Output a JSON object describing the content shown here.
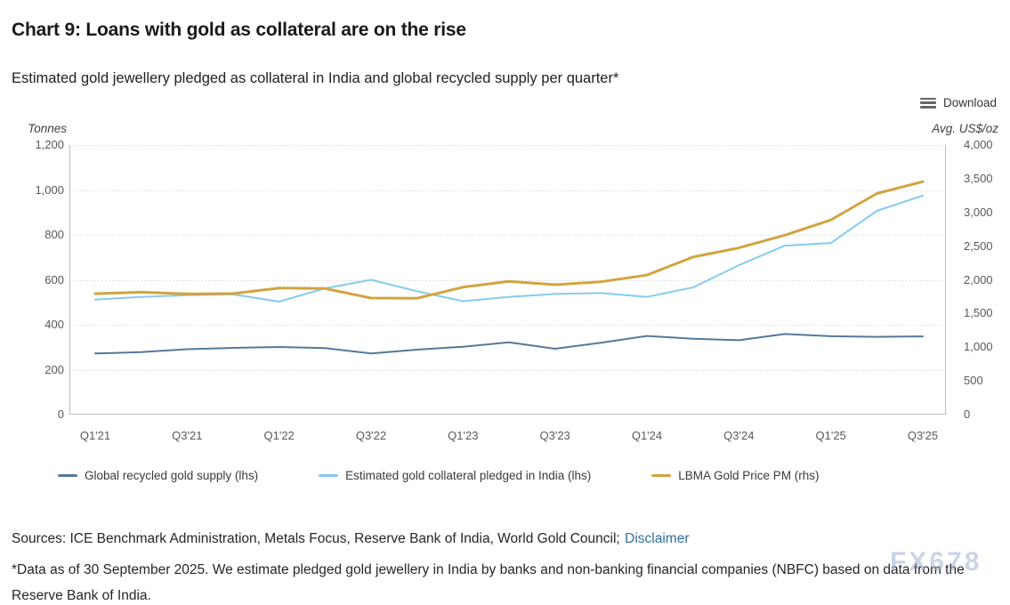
{
  "header": {
    "title": "Chart 9: Loans with gold as collateral are on the rise",
    "subtitle": "Estimated gold jewellery pledged as collateral in India and global recycled supply per quarter*",
    "download_label": "Download"
  },
  "chart_data": {
    "type": "line",
    "categories": [
      "Q1'21",
      "Q2'21",
      "Q3'21",
      "Q4'21",
      "Q1'22",
      "Q2'22",
      "Q3'22",
      "Q4'22",
      "Q1'23",
      "Q2'23",
      "Q3'23",
      "Q4'23",
      "Q1'24",
      "Q2'24",
      "Q3'24",
      "Q4'24",
      "Q1'25",
      "Q2'25",
      "Q3'25"
    ],
    "x_tick_labels": [
      "Q1'21",
      "Q3'21",
      "Q1'22",
      "Q3'22",
      "Q1'23",
      "Q3'23",
      "Q1'24",
      "Q3'24",
      "Q1'25",
      "Q3'25"
    ],
    "left_axis": {
      "title": "Tonnes",
      "min": 0,
      "max": 1200,
      "tick_step": 200
    },
    "right_axis": {
      "title": "Avg. US$/oz",
      "min": 0,
      "max": 4000,
      "tick_step": 500
    },
    "grid": "dotted horizontal gridlines at left-axis ticks",
    "legend_position": "bottom",
    "series": [
      {
        "name": "Global recycled gold supply (lhs)",
        "axis": "lhs",
        "color": "#54799b",
        "width": 2,
        "values": [
          272,
          278,
          291,
          297,
          301,
          296,
          272,
          289,
          302,
          322,
          293,
          320,
          350,
          338,
          331,
          359,
          349,
          346,
          348
        ]
      },
      {
        "name": "Estimated gold collateral pledged in India (lhs)",
        "axis": "lhs",
        "color": "#85cbef",
        "width": 2,
        "values": [
          512,
          524,
          532,
          535,
          503,
          562,
          600,
          549,
          505,
          524,
          537,
          541,
          524,
          566,
          665,
          752,
          764,
          907,
          975
        ]
      },
      {
        "name": "LBMA Gold Price PM (rhs)",
        "axis": "rhs",
        "color": "#d2a440",
        "width": 3,
        "values": [
          1794,
          1816,
          1790,
          1795,
          1877,
          1871,
          1729,
          1727,
          1890,
          1976,
          1928,
          1971,
          2070,
          2338,
          2474,
          2663,
          2888,
          3280,
          3456
        ]
      }
    ]
  },
  "footer": {
    "sources_prefix": "Sources: ICE Benchmark Administration, Metals Focus, Reserve Bank of India, World Gold Council;",
    "disclaimer_label": "Disclaimer",
    "footnote": "*Data as of 30 September 2025. We estimate pledged gold jewellery in India by banks and non-banking financial companies (NBFC) based on data from the Reserve Bank of India."
  },
  "watermark": {
    "text": "FX678"
  }
}
